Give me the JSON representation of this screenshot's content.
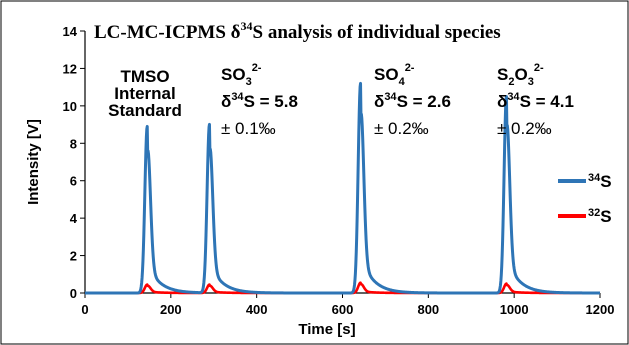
{
  "chart_data": {
    "type": "line",
    "title_main": "LC-MC-ICPMS δ",
    "title_sup": "34",
    "title_rest": "S analysis of individual species",
    "xlabel": "Time [s]",
    "ylabel": "Intensity [V]",
    "xlim": [
      0,
      1200
    ],
    "ylim": [
      0,
      14
    ],
    "x_ticks": [
      "0",
      "200",
      "400",
      "600",
      "800",
      "1000",
      "1200"
    ],
    "y_ticks": [
      "0",
      "2",
      "4",
      "6",
      "8",
      "10",
      "12",
      "14"
    ],
    "grid": false,
    "legend_position": "right",
    "series": [
      {
        "name": "34S",
        "name_sup": "34",
        "name_base": "S",
        "color": "#2e75b6",
        "peaks": [
          {
            "center": 145,
            "height": 8.9
          },
          {
            "center": 290,
            "height": 9.0
          },
          {
            "center": 642,
            "height": 11.2
          },
          {
            "center": 982,
            "height": 10.5
          }
        ]
      },
      {
        "name": "32S",
        "name_sup": "32",
        "name_base": "S",
        "color": "#ff0000",
        "peaks": [
          {
            "center": 145,
            "height": 0.45
          },
          {
            "center": 290,
            "height": 0.45
          },
          {
            "center": 642,
            "height": 0.55
          },
          {
            "center": 982,
            "height": 0.5
          }
        ]
      }
    ],
    "annotations": {
      "tmso": [
        "TMSO",
        "Internal",
        "Standard"
      ],
      "so3": {
        "formula_base": "SO",
        "formula_sub": "3",
        "formula_sup": "2-",
        "delta_pre": "δ",
        "delta_sup": "34",
        "delta_post": "S = 5.8",
        "uncertainty": "± 0.1‰"
      },
      "so4": {
        "formula_base": "SO",
        "formula_sub": "4",
        "formula_sup": "2-",
        "delta_pre": "δ",
        "delta_sup": "34",
        "delta_post": "S = 2.6",
        "uncertainty": "± 0.2‰"
      },
      "s2o3": {
        "formula_a": "S",
        "formula_sub1": "2",
        "formula_b": "O",
        "formula_sub2": "3",
        "formula_sup": "2-",
        "delta_pre": "δ",
        "delta_sup": "34",
        "delta_post": "S = 4.1",
        "uncertainty": "± 0.2‰"
      }
    }
  }
}
